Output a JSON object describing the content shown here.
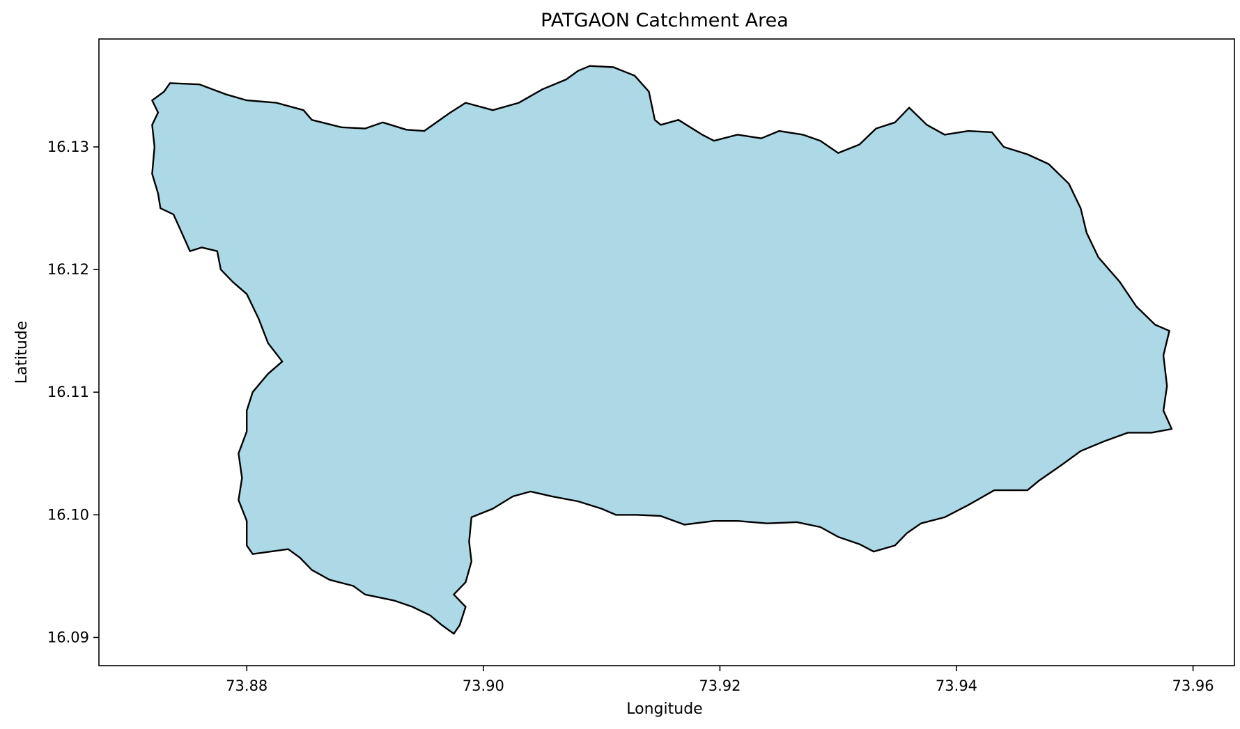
{
  "chart_data": {
    "type": "map",
    "title": "PATGAON Catchment Area",
    "xlabel": "Longitude",
    "ylabel": "Latitude",
    "xlim": [
      73.8675,
      73.9635
    ],
    "ylim": [
      16.0877,
      16.1388
    ],
    "xticks": [
      73.88,
      73.9,
      73.92,
      73.94,
      73.96
    ],
    "xtick_labels": [
      "73.88",
      "73.90",
      "73.92",
      "73.94",
      "73.96"
    ],
    "yticks": [
      16.09,
      16.1,
      16.11,
      16.12,
      16.13
    ],
    "ytick_labels": [
      "16.09",
      "16.10",
      "16.11",
      "16.12",
      "16.13"
    ],
    "grid": false,
    "fill_color": "#add8e6",
    "edge_color": "#000000",
    "boundary": [
      [
        73.873,
        16.1345
      ],
      [
        73.8735,
        16.1352
      ],
      [
        73.876,
        16.1351
      ],
      [
        73.8782,
        16.1343
      ],
      [
        73.88,
        16.1338
      ],
      [
        73.8825,
        16.1336
      ],
      [
        73.8848,
        16.133
      ],
      [
        73.8855,
        16.1322
      ],
      [
        73.888,
        16.1316
      ],
      [
        73.89,
        16.1315
      ],
      [
        73.8915,
        16.132
      ],
      [
        73.8935,
        16.1314
      ],
      [
        73.895,
        16.1313
      ],
      [
        73.8972,
        16.1328
      ],
      [
        73.8985,
        16.1336
      ],
      [
        73.9008,
        16.133
      ],
      [
        73.903,
        16.1336
      ],
      [
        73.905,
        16.1347
      ],
      [
        73.907,
        16.1355
      ],
      [
        73.908,
        16.1362
      ],
      [
        73.909,
        16.1366
      ],
      [
        73.911,
        16.1365
      ],
      [
        73.9128,
        16.1358
      ],
      [
        73.914,
        16.1345
      ],
      [
        73.9145,
        16.1322
      ],
      [
        73.915,
        16.1318
      ],
      [
        73.9165,
        16.1322
      ],
      [
        73.9185,
        16.131
      ],
      [
        73.9195,
        16.1305
      ],
      [
        73.9215,
        16.131
      ],
      [
        73.9235,
        16.1307
      ],
      [
        73.925,
        16.1313
      ],
      [
        73.927,
        16.131
      ],
      [
        73.9285,
        16.1305
      ],
      [
        73.93,
        16.1295
      ],
      [
        73.9318,
        16.1302
      ],
      [
        73.9332,
        16.1315
      ],
      [
        73.9348,
        16.132
      ],
      [
        73.936,
        16.1332
      ],
      [
        73.9375,
        16.1318
      ],
      [
        73.939,
        16.131
      ],
      [
        73.941,
        16.1313
      ],
      [
        73.943,
        16.1312
      ],
      [
        73.944,
        16.13
      ],
      [
        73.946,
        16.1294
      ],
      [
        73.9478,
        16.1286
      ],
      [
        73.9495,
        16.127
      ],
      [
        73.9505,
        16.125
      ],
      [
        73.951,
        16.123
      ],
      [
        73.952,
        16.121
      ],
      [
        73.9538,
        16.119
      ],
      [
        73.9552,
        16.117
      ],
      [
        73.9568,
        16.1155
      ],
      [
        73.958,
        16.115
      ],
      [
        73.9575,
        16.113
      ],
      [
        73.9578,
        16.1105
      ],
      [
        73.9575,
        16.1085
      ],
      [
        73.9582,
        16.107
      ],
      [
        73.9565,
        16.1067
      ],
      [
        73.9545,
        16.1067
      ],
      [
        73.9525,
        16.106
      ],
      [
        73.9505,
        16.1052
      ],
      [
        73.9488,
        16.104
      ],
      [
        73.947,
        16.1028
      ],
      [
        73.946,
        16.102
      ],
      [
        73.9432,
        16.102
      ],
      [
        73.941,
        16.1008
      ],
      [
        73.939,
        16.0998
      ],
      [
        73.937,
        16.0993
      ],
      [
        73.9358,
        16.0985
      ],
      [
        73.9348,
        16.0975
      ],
      [
        73.933,
        16.097
      ],
      [
        73.9318,
        16.0976
      ],
      [
        73.93,
        16.0982
      ],
      [
        73.9285,
        16.099
      ],
      [
        73.9265,
        16.0994
      ],
      [
        73.924,
        16.0993
      ],
      [
        73.9215,
        16.0995
      ],
      [
        73.9195,
        16.0995
      ],
      [
        73.917,
        16.0992
      ],
      [
        73.915,
        16.0999
      ],
      [
        73.913,
        16.1
      ],
      [
        73.9112,
        16.1
      ],
      [
        73.91,
        16.1005
      ],
      [
        73.908,
        16.1011
      ],
      [
        73.9058,
        16.1015
      ],
      [
        73.904,
        16.1019
      ],
      [
        73.9025,
        16.1015
      ],
      [
        73.9008,
        16.1005
      ],
      [
        73.899,
        16.0998
      ],
      [
        73.8988,
        16.0978
      ],
      [
        73.899,
        16.0962
      ],
      [
        73.8985,
        16.0945
      ],
      [
        73.8975,
        16.0935
      ],
      [
        73.8985,
        16.0925
      ],
      [
        73.898,
        16.091
      ],
      [
        73.8975,
        16.0903
      ],
      [
        73.8965,
        16.091
      ],
      [
        73.8955,
        16.0918
      ],
      [
        73.894,
        16.0925
      ],
      [
        73.8925,
        16.093
      ],
      [
        73.89,
        16.0935
      ],
      [
        73.889,
        16.0942
      ],
      [
        73.887,
        16.0947
      ],
      [
        73.8855,
        16.0955
      ],
      [
        73.8845,
        16.0965
      ],
      [
        73.8835,
        16.0972
      ],
      [
        73.882,
        16.097
      ],
      [
        73.8805,
        16.0968
      ],
      [
        73.88,
        16.0975
      ],
      [
        73.88,
        16.0995
      ],
      [
        73.8793,
        16.1012
      ],
      [
        73.8796,
        16.103
      ],
      [
        73.8793,
        16.105
      ],
      [
        73.88,
        16.1068
      ],
      [
        73.88,
        16.1085
      ],
      [
        73.8805,
        16.11
      ],
      [
        73.8818,
        16.1115
      ],
      [
        73.883,
        16.1125
      ],
      [
        73.8818,
        16.114
      ],
      [
        73.881,
        16.116
      ],
      [
        73.88,
        16.118
      ],
      [
        73.8788,
        16.119
      ],
      [
        73.8778,
        16.12
      ],
      [
        73.8775,
        16.1215
      ],
      [
        73.8762,
        16.1218
      ],
      [
        73.8752,
        16.1215
      ],
      [
        73.8745,
        16.123
      ],
      [
        73.8738,
        16.1245
      ],
      [
        73.8727,
        16.125
      ],
      [
        73.8725,
        16.1262
      ],
      [
        73.872,
        16.1278
      ],
      [
        73.8722,
        16.13
      ],
      [
        73.872,
        16.1318
      ],
      [
        73.8725,
        16.1328
      ],
      [
        73.872,
        16.1338
      ]
    ]
  }
}
